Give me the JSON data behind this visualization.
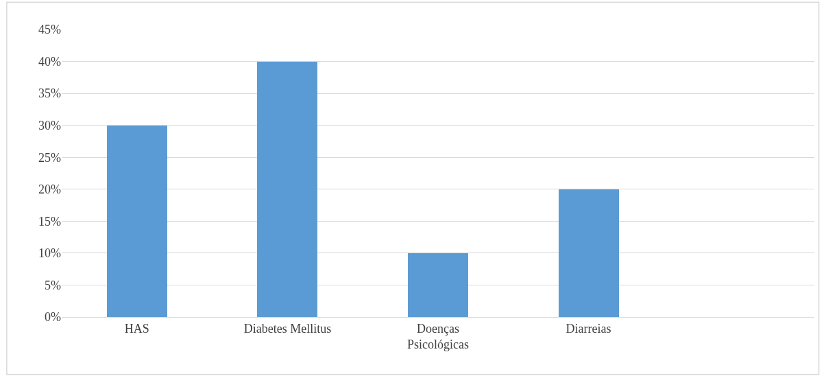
{
  "chart_data": {
    "type": "bar",
    "categories": [
      "HAS",
      "Diabetes Mellitus",
      "Doenças\nPsicológicas",
      "Diarreias",
      null
    ],
    "values": [
      30,
      40,
      10,
      20,
      null
    ],
    "color": "#5b9bd5",
    "ylim": [
      0,
      45
    ],
    "yticks": [
      {
        "value": 0,
        "label": "0%"
      },
      {
        "value": 5,
        "label": "5%"
      },
      {
        "value": 10,
        "label": "10%"
      },
      {
        "value": 15,
        "label": "15%"
      },
      {
        "value": 20,
        "label": "20%"
      },
      {
        "value": 25,
        "label": "25%"
      },
      {
        "value": 30,
        "label": "30%"
      },
      {
        "value": 35,
        "label": "35%"
      },
      {
        "value": 40,
        "label": "40%"
      },
      {
        "value": 45,
        "label": "45%"
      }
    ],
    "grid": "y",
    "legend": false
  }
}
